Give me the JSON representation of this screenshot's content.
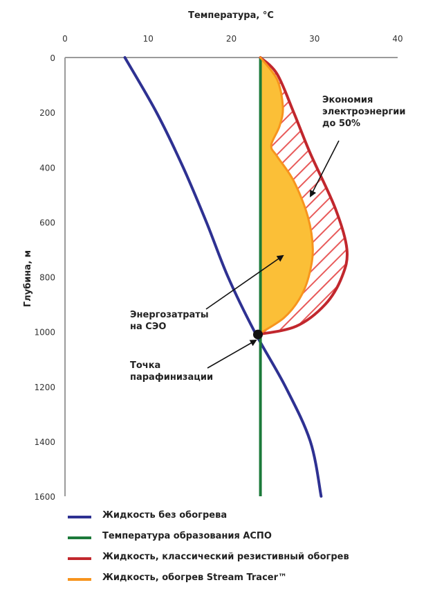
{
  "chart_data": {
    "type": "line",
    "xlabel": "Температура, °C",
    "ylabel": "Глубина, м",
    "x_ticks": [
      0,
      10,
      20,
      30,
      40
    ],
    "y_ticks": [
      0,
      200,
      400,
      600,
      800,
      1000,
      1200,
      1400,
      1600
    ],
    "xlim": [
      0,
      40
    ],
    "ylim": [
      0,
      1600
    ],
    "x_axis_position": "top",
    "y_axis_inverted": true,
    "grid": false,
    "legend_placement": "bottom",
    "series": [
      {
        "name": "Жидкость без обогрева",
        "color": "#2e3192",
        "points": [
          [
            7.2,
            0
          ],
          [
            11,
            200
          ],
          [
            14.2,
            400
          ],
          [
            17,
            600
          ],
          [
            19.6,
            800
          ],
          [
            22.8,
            1000
          ],
          [
            26.5,
            1200
          ],
          [
            29.5,
            1400
          ],
          [
            30.8,
            1600
          ]
        ]
      },
      {
        "name": "Температура образования АСПО",
        "color": "#1c7a3a",
        "points": [
          [
            23.5,
            0
          ],
          [
            23.5,
            1600
          ]
        ]
      },
      {
        "name": "Жидкость, классический резистивный обогрев",
        "color": "#c1272d",
        "points": [
          [
            23.5,
            0
          ],
          [
            25.5,
            60
          ],
          [
            27.5,
            200
          ],
          [
            29.5,
            350
          ],
          [
            32.5,
            550
          ],
          [
            33.9,
            700
          ],
          [
            33.3,
            800
          ],
          [
            31.3,
            900
          ],
          [
            27.8,
            980
          ],
          [
            23.2,
            1010
          ]
        ]
      },
      {
        "name": "Жидкость, обогрев Stream Tracer™",
        "color": "#f7941d",
        "points": [
          [
            23.5,
            0
          ],
          [
            25.5,
            80
          ],
          [
            26.2,
            180
          ],
          [
            25.8,
            250
          ],
          [
            24.8,
            320
          ],
          [
            25.5,
            360
          ],
          [
            27.5,
            450
          ],
          [
            29.2,
            580
          ],
          [
            29.8,
            700
          ],
          [
            29.3,
            800
          ],
          [
            28.2,
            880
          ],
          [
            26.3,
            950
          ],
          [
            23.2,
            1010
          ]
        ]
      }
    ],
    "points": [
      {
        "label": "Точка парафинизации",
        "x": 23.2,
        "y": 1010
      }
    ],
    "regions": [
      {
        "label": "Энергозатраты на СЭО",
        "fill": "#fbbf37",
        "between": [
          "Температура образования АСПО",
          "Жидкость, обогрев Stream Tracer™"
        ]
      },
      {
        "label": "Экономия электроэнергии до 50%",
        "fill": "hatched #e85a5a",
        "between": [
          "Жидкость, обогрев Stream Tracer™",
          "Жидкость, классический резистивный обогрев"
        ]
      }
    ],
    "annotations": {
      "savings": [
        "Экономия",
        "электроэнергии",
        "до 50%"
      ],
      "energy": [
        "Энергозатраты",
        "на СЭО"
      ],
      "paraffin": [
        "Точка",
        "парафинизации"
      ]
    }
  },
  "legend": [
    {
      "label": "Жидкость без обогрева",
      "color": "#2e3192"
    },
    {
      "label": "Температура образования АСПО",
      "color": "#1c7a3a"
    },
    {
      "label": "Жидкость, классический резистивный обогрев",
      "color": "#c1272d"
    },
    {
      "label": "Жидкость, обогрев Stream Tracer™",
      "color": "#f7941d"
    }
  ]
}
